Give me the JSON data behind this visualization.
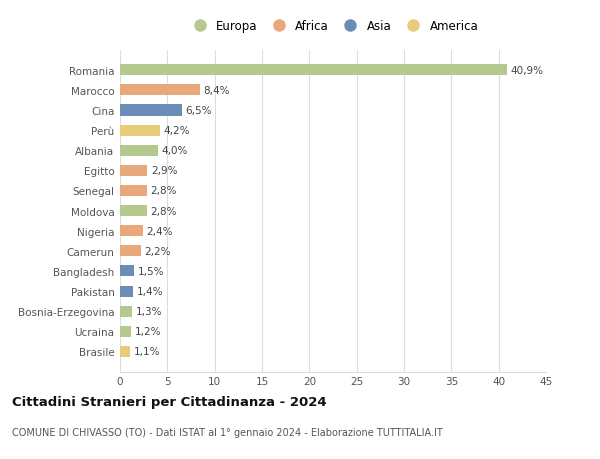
{
  "countries": [
    "Romania",
    "Marocco",
    "Cina",
    "Perù",
    "Albania",
    "Egitto",
    "Senegal",
    "Moldova",
    "Nigeria",
    "Camerun",
    "Bangladesh",
    "Pakistan",
    "Bosnia-Erzegovina",
    "Ucraina",
    "Brasile"
  ],
  "values": [
    40.9,
    8.4,
    6.5,
    4.2,
    4.0,
    2.9,
    2.8,
    2.8,
    2.4,
    2.2,
    1.5,
    1.4,
    1.3,
    1.2,
    1.1
  ],
  "labels": [
    "40,9%",
    "8,4%",
    "6,5%",
    "4,2%",
    "4,0%",
    "2,9%",
    "2,8%",
    "2,8%",
    "2,4%",
    "2,2%",
    "1,5%",
    "1,4%",
    "1,3%",
    "1,2%",
    "1,1%"
  ],
  "continents": [
    "Europa",
    "Africa",
    "Asia",
    "America",
    "Europa",
    "Africa",
    "Africa",
    "Europa",
    "Africa",
    "Africa",
    "Asia",
    "Asia",
    "Europa",
    "Europa",
    "America"
  ],
  "colors": {
    "Europa": "#b5c98e",
    "Africa": "#e8a87c",
    "Asia": "#6b8db5",
    "America": "#e8cc7c"
  },
  "legend_order": [
    "Europa",
    "Africa",
    "Asia",
    "America"
  ],
  "title": "Cittadini Stranieri per Cittadinanza - 2024",
  "subtitle": "COMUNE DI CHIVASSO (TO) - Dati ISTAT al 1° gennaio 2024 - Elaborazione TUTTITALIA.IT",
  "xlim": [
    0,
    45
  ],
  "xticks": [
    0,
    5,
    10,
    15,
    20,
    25,
    30,
    35,
    40,
    45
  ],
  "background_color": "#ffffff",
  "grid_color": "#dddddd",
  "bar_height": 0.55,
  "label_fontsize": 7.5,
  "ytick_fontsize": 7.5,
  "xtick_fontsize": 7.5,
  "legend_fontsize": 8.5,
  "title_fontsize": 9.5,
  "subtitle_fontsize": 7.0
}
